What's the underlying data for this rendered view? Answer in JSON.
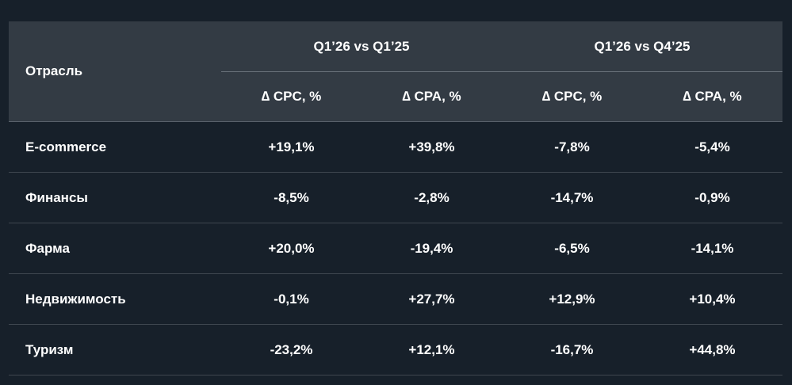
{
  "header": {
    "industry": "Отрасль",
    "groups": [
      "Q1’26 vs Q1’25",
      "Q1’26 vs Q4’25"
    ],
    "subs": [
      "∆ CPC, %",
      "∆ CPA, %",
      "∆ CPC, %",
      "∆ CPA, %"
    ]
  },
  "rows": [
    {
      "name": "E-commerce",
      "values": [
        "+19,1%",
        "+39,8%",
        "-7,8%",
        "-5,4%"
      ]
    },
    {
      "name": "Финансы",
      "values": [
        "-8,5%",
        "-2,8%",
        "-14,7%",
        "-0,9%"
      ]
    },
    {
      "name": "Фарма",
      "values": [
        "+20,0%",
        "-19,4%",
        "-6,5%",
        "-14,1%"
      ]
    },
    {
      "name": "Недвижимость",
      "values": [
        "-0,1%",
        "+27,7%",
        "+12,9%",
        "+10,4%"
      ]
    },
    {
      "name": "Туризм",
      "values": [
        "-23,2%",
        "+12,1%",
        "-16,7%",
        "+44,8%"
      ]
    }
  ]
}
